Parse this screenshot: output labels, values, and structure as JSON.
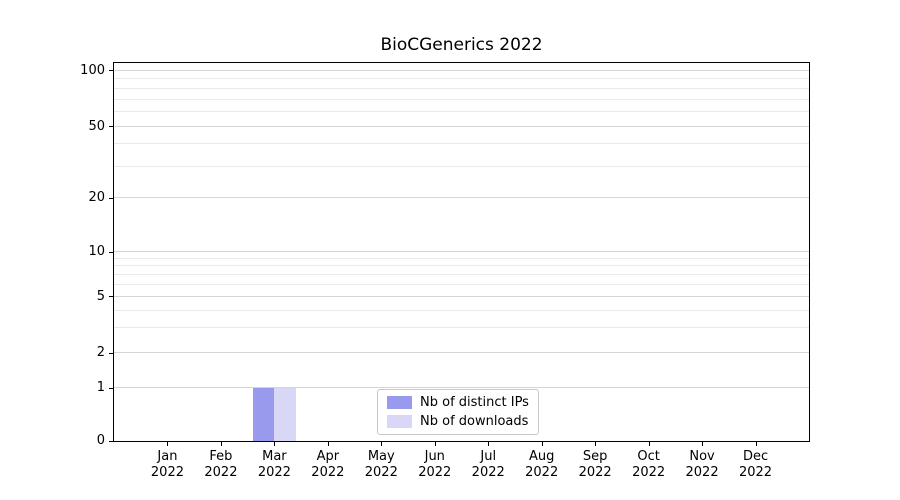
{
  "chart_data": {
    "type": "bar",
    "title": "BioCGenerics 2022",
    "x_tick_months": [
      "Jan",
      "Feb",
      "Mar",
      "Apr",
      "May",
      "Jun",
      "Jul",
      "Aug",
      "Sep",
      "Oct",
      "Nov",
      "Dec"
    ],
    "x_tick_year": "2022",
    "series": [
      {
        "name": "Nb of distinct IPs",
        "color": "#9999ee",
        "values": [
          0,
          0,
          1,
          0,
          0,
          0,
          0,
          0,
          0,
          0,
          0,
          0
        ]
      },
      {
        "name": "Nb of downloads",
        "color": "#d8d8f6",
        "values": [
          0,
          0,
          1,
          0,
          0,
          0,
          0,
          0,
          0,
          0,
          0,
          0
        ]
      }
    ],
    "y_ticks": [
      0,
      1,
      2,
      5,
      10,
      20,
      50,
      100
    ],
    "y_minor_gridlines": [
      3,
      4,
      6,
      7,
      8,
      9,
      30,
      40,
      60,
      70,
      80,
      90
    ],
    "y_scale": "symlog",
    "ylim": [
      0,
      110
    ],
    "grid": "horizontal",
    "legend_position": "lower center"
  }
}
